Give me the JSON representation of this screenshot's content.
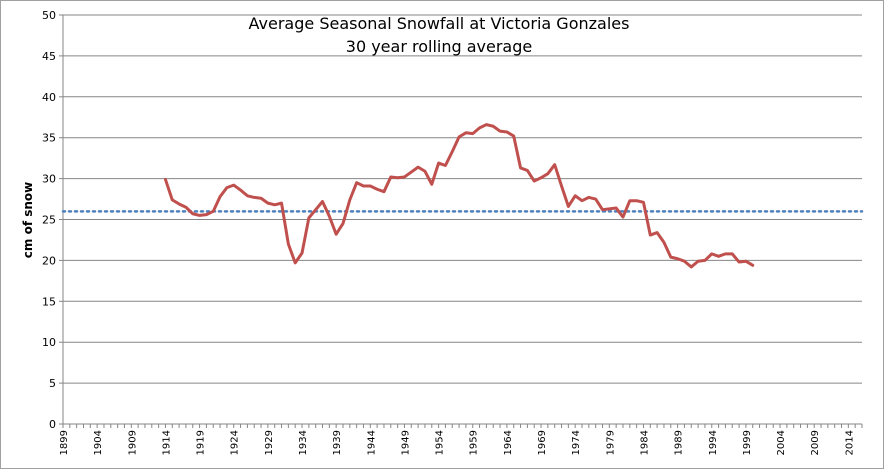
{
  "chart_data": {
    "type": "line",
    "title": "Average Seasonal Snowfall at Victoria Gonzales",
    "subtitle": "30 year rolling average",
    "xlabel": "",
    "ylabel": "cm of snow",
    "ylim": [
      0,
      50
    ],
    "xlim": [
      1899,
      2016
    ],
    "y_ticks": [
      0,
      5,
      10,
      15,
      20,
      25,
      30,
      35,
      40,
      45,
      50
    ],
    "x_ticks": [
      1899,
      1904,
      1909,
      1914,
      1919,
      1924,
      1929,
      1934,
      1939,
      1944,
      1949,
      1954,
      1959,
      1964,
      1969,
      1974,
      1979,
      1984,
      1989,
      1994,
      1999,
      2004,
      2009,
      2014
    ],
    "grid": "horizontal",
    "reference_line": {
      "y": 26,
      "color": "#4F81BD",
      "style": "dotted"
    },
    "series": [
      {
        "color": "#C0504D",
        "x": [
          1914,
          1915,
          1916,
          1917,
          1918,
          1919,
          1920,
          1921,
          1922,
          1923,
          1924,
          1925,
          1926,
          1927,
          1928,
          1929,
          1930,
          1931,
          1932,
          1933,
          1934,
          1935,
          1936,
          1937,
          1938,
          1939,
          1940,
          1941,
          1942,
          1943,
          1944,
          1945,
          1946,
          1947,
          1948,
          1949,
          1950,
          1951,
          1952,
          1953,
          1954,
          1955,
          1956,
          1957,
          1958,
          1959,
          1960,
          1961,
          1962,
          1963,
          1964,
          1965,
          1966,
          1967,
          1968,
          1969,
          1970,
          1971,
          1972,
          1973,
          1974,
          1975,
          1976,
          1977,
          1978,
          1979,
          1980,
          1981,
          1982,
          1983,
          1984,
          1985,
          1986,
          1987,
          1988,
          1989,
          1990,
          1991,
          1992,
          1993,
          1994,
          1995,
          1996,
          1997,
          1998,
          1999,
          2000
        ],
        "values": [
          29.9,
          27.4,
          26.9,
          26.5,
          25.7,
          25.5,
          25.6,
          26.0,
          27.8,
          28.9,
          29.2,
          28.6,
          27.9,
          27.7,
          27.6,
          27.0,
          26.8,
          27.0,
          22.0,
          19.7,
          20.9,
          25.2,
          26.2,
          27.2,
          25.4,
          23.2,
          24.5,
          27.4,
          29.5,
          29.1,
          29.1,
          28.7,
          28.4,
          30.2,
          30.1,
          30.2,
          30.8,
          31.4,
          30.9,
          29.3,
          31.9,
          31.6,
          33.3,
          35.1,
          35.6,
          35.5,
          36.2,
          36.6,
          36.4,
          35.8,
          35.7,
          35.2,
          31.3,
          31.0,
          29.7,
          30.1,
          30.6,
          31.7,
          29.1,
          26.6,
          27.9,
          27.3,
          27.7,
          27.5,
          26.2,
          26.3,
          26.4,
          25.3,
          27.3,
          27.3,
          27.1,
          23.1,
          23.4,
          22.2,
          20.4,
          20.2,
          19.9,
          19.2,
          19.9,
          20.0,
          20.8,
          20.5,
          20.8,
          20.8,
          19.8,
          19.9,
          19.4
        ]
      }
    ]
  }
}
